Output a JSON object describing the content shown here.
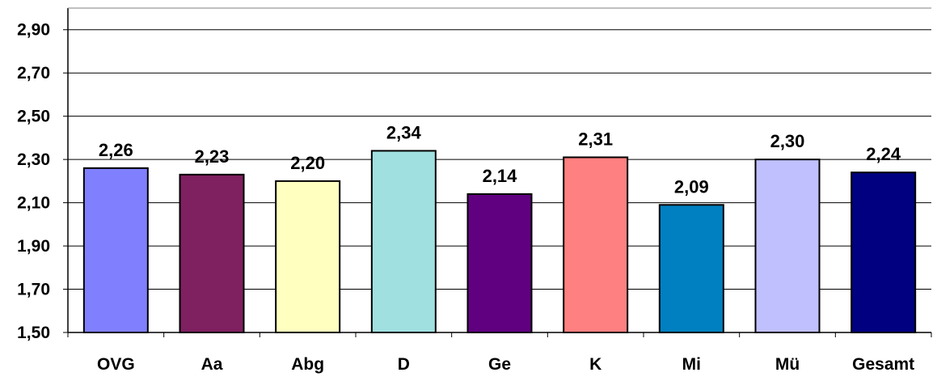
{
  "chart_data": {
    "type": "bar",
    "title": "",
    "xlabel": "",
    "ylabel": "",
    "categories": [
      "OVG",
      "Aa",
      "Abg",
      "D",
      "Ge",
      "K",
      "Mi",
      "Mü",
      "Gesamt"
    ],
    "values": [
      2.26,
      2.23,
      2.2,
      2.34,
      2.14,
      2.31,
      2.09,
      2.3,
      2.24
    ],
    "value_labels": [
      "2,26",
      "2,23",
      "2,20",
      "2,34",
      "2,14",
      "2,31",
      "2,09",
      "2,30",
      "2,24"
    ],
    "bar_colors": [
      "#8080FF",
      "#7F2060",
      "#FFFFC0",
      "#A0E0E0",
      "#600080",
      "#FF8080",
      "#0080C0",
      "#C0C0FF",
      "#000080"
    ],
    "ylim": [
      1.5,
      3.0
    ],
    "yticks": [
      1.5,
      1.7,
      1.9,
      2.1,
      2.3,
      2.5,
      2.7,
      2.9
    ],
    "ytick_labels": [
      "1,50",
      "1,70",
      "1,90",
      "2,10",
      "2,30",
      "2,50",
      "2,70",
      "2,90"
    ],
    "grid": "horizontal",
    "legend": "none"
  }
}
